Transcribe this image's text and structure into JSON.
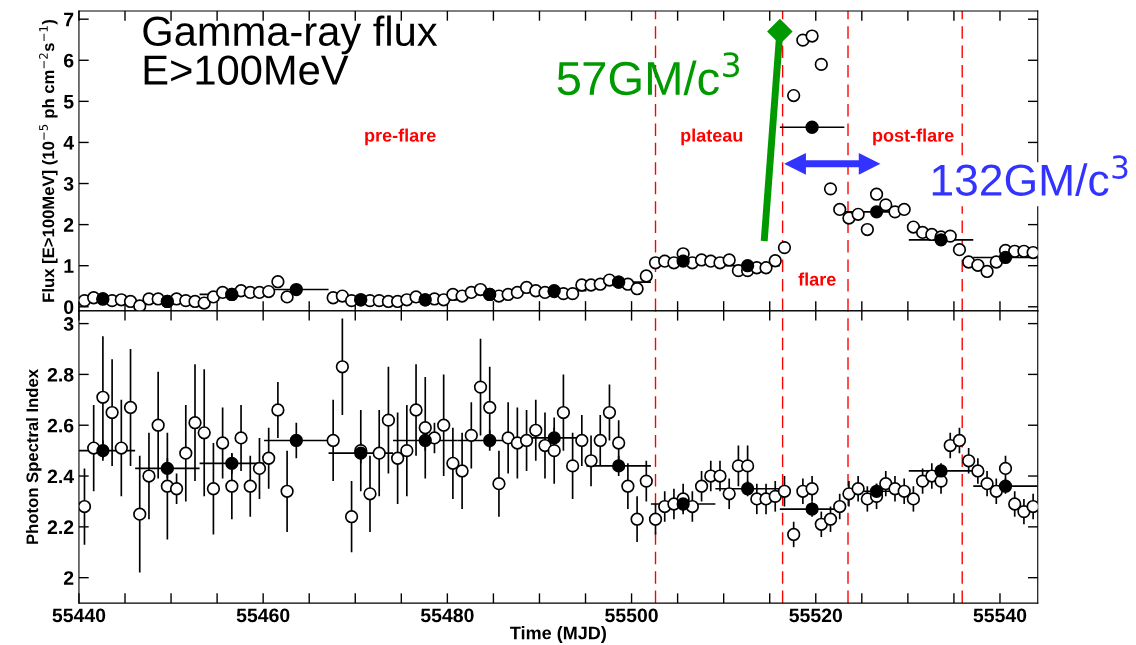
{
  "chart_data": [
    {
      "type": "scatter",
      "ylabel": "Flux [E>100MeV] (10$^{−5}$ ph cm$^{−2}$s$^{−1}$)",
      "marker": "circle",
      "tick_labels": "y",
      "xlim": [
        55440,
        55544.1
      ],
      "ylim": [
        -0.1,
        7.2
      ],
      "xticks": [
        55440,
        {
          "value": 55445,
          "label": null
        },
        {
          "value": 55450,
          "label": null
        },
        {
          "value": 55455,
          "label": null
        },
        55460,
        {
          "value": 55465,
          "label": null
        },
        {
          "value": 55470,
          "label": null
        },
        {
          "value": 55475,
          "label": null
        },
        55480,
        {
          "value": 55485,
          "label": null
        },
        {
          "value": 55490,
          "label": null
        },
        {
          "value": 55495,
          "label": null
        },
        55500,
        {
          "value": 55505,
          "label": null
        },
        {
          "value": 55510,
          "label": null
        },
        {
          "value": 55515,
          "label": null
        },
        55520,
        {
          "value": 55525,
          "label": null
        },
        {
          "value": 55530,
          "label": null
        },
        {
          "value": 55535,
          "label": null
        },
        55540
      ],
      "yticks": [
        0,
        1,
        2,
        3,
        4,
        5,
        6,
        7
      ],
      "ref_lines": [
        {
          "axis": "x",
          "value": 55502.6,
          "color": "#ff0000",
          "line_style": "dashed"
        },
        {
          "axis": "x",
          "value": 55516.4,
          "color": "#ff0000",
          "line_style": "dashed"
        },
        {
          "axis": "x",
          "value": 55523.5,
          "color": "#ff0000",
          "line_style": "dashed"
        },
        {
          "axis": "x",
          "value": 55535.9,
          "color": "#ff0000",
          "line_style": "dashed"
        }
      ],
      "annotations": [
        "Gamma-ray flux\nE>100MeV",
        "pre-flare",
        "plateau",
        "flare",
        "post-flare",
        "57GM/c$^{3}$",
        "132GM/c$^{3}$"
      ],
      "series": [
        {
          "color": "#000000",
          "x": [
            55440.6,
            55441.6,
            55442.6,
            55443.6,
            55444.6,
            55445.6,
            55446.6,
            55447.6,
            55448.6,
            55449.6,
            55450.6,
            55451.6,
            55452.6,
            55453.6,
            55454.6,
            55455.6,
            55456.6,
            55457.6,
            55458.6,
            55459.6,
            55460.6,
            55461.6,
            55462.6,
            55467.6,
            55468.6,
            55469.6,
            55470.6,
            55471.6,
            55472.6,
            55473.6,
            55474.6,
            55475.6,
            55476.6,
            55477.6,
            55478.6,
            55479.6,
            55480.6,
            55481.6,
            55482.6,
            55483.6,
            55484.6,
            55485.6,
            55486.6,
            55487.6,
            55488.6,
            55489.6,
            55490.6,
            55491.6,
            55492.6,
            55493.6,
            55494.6,
            55495.6,
            55496.6,
            55497.6,
            55498.6,
            55499.6,
            55500.6,
            55501.6,
            55502.6,
            55503.6,
            55504.6,
            55505.6,
            55506.6,
            55507.6,
            55508.6,
            55509.6,
            55510.6,
            55511.6,
            55512.6,
            55513.6,
            55514.6,
            55515.6,
            55516.6,
            55517.6,
            55518.6,
            55519.6,
            55520.6,
            55521.6,
            55522.6,
            55523.6,
            55524.6,
            55525.6,
            55526.6,
            55527.6,
            55528.6,
            55529.6,
            55530.6,
            55531.6,
            55532.6,
            55533.6,
            55534.6,
            55535.6,
            55536.6,
            55537.6,
            55538.6,
            55539.6,
            55540.6,
            55541.6,
            55542.6,
            55543.6
          ],
          "values": [
            0.15,
            0.22,
            0.19,
            0.15,
            0.17,
            0.13,
            0.02,
            0.19,
            0.19,
            0.13,
            0.19,
            0.15,
            0.13,
            0.09,
            0.24,
            0.35,
            0.3,
            0.39,
            0.35,
            0.35,
            0.37,
            0.61,
            0.24,
            0.22,
            0.26,
            0.15,
            0.17,
            0.15,
            0.15,
            0.13,
            0.13,
            0.17,
            0.24,
            0.17,
            0.19,
            0.17,
            0.3,
            0.26,
            0.35,
            0.42,
            0.3,
            0.26,
            0.3,
            0.35,
            0.47,
            0.39,
            0.35,
            0.37,
            0.32,
            0.32,
            0.53,
            0.53,
            0.55,
            0.65,
            0.6,
            0.55,
            0.44,
            0.75,
            1.07,
            1.11,
            1.07,
            1.29,
            1.07,
            1.14,
            1.11,
            1.07,
            1.14,
            0.88,
            0.88,
            0.95,
            0.95,
            1.12,
            1.44,
            5.14,
            6.49,
            6.59,
            5.9,
            2.87,
            2.37,
            2.16,
            2.25,
            1.88,
            2.74,
            2.48,
            2.31,
            2.37,
            1.94,
            1.81,
            1.76,
            1.7,
            1.72,
            1.39,
            1.09,
            1.01,
            0.86,
            1.09,
            1.37,
            1.35,
            1.35,
            1.32
          ]
        },
        {
          "color": "#000000",
          "x": [
            55442.6,
            55449.6,
            55456.6,
            55463.6,
            55470.6,
            55477.6,
            55484.6,
            55491.6,
            55498.6,
            55505.6,
            55512.6,
            55519.6,
            55526.6,
            55533.6,
            55540.6
          ],
          "values": [
            0.19,
            0.13,
            0.3,
            0.42,
            0.17,
            0.17,
            0.3,
            0.39,
            0.6,
            1.11,
            1.0,
            4.37,
            2.31,
            1.63,
            1.2
          ],
          "xerrors": [
            3.5,
            3.5,
            3.5,
            3.5,
            3.5,
            3.5,
            3.5,
            3.5,
            3.5,
            3.5,
            3.5,
            3.5,
            3.5,
            3.5,
            3.5
          ]
        },
        {
          "type": "line",
          "color": "#009900",
          "marker": "diamond",
          "line_style": "solid",
          "x": [
            55514.4,
            55516.1
          ],
          "values": [
            1.6,
            6.7
          ]
        },
        {
          "type": "line",
          "color": "#3333ff",
          "marker": "triangle",
          "line_style": "solid",
          "x": [
            55517.8,
            55525.8
          ],
          "values": [
            3.48,
            3.48
          ]
        }
      ]
    },
    {
      "type": "scatter",
      "xlabel": "Time (MJD)",
      "ylabel": "Photon Spectral Index",
      "marker": "circle",
      "xlim": [
        55440,
        55544.1
      ],
      "ylim": [
        1.9,
        3.05
      ],
      "xticks": [
        55440,
        {
          "value": 55445,
          "label": null
        },
        {
          "value": 55450,
          "label": null
        },
        {
          "value": 55455,
          "label": null
        },
        55460,
        {
          "value": 55465,
          "label": null
        },
        {
          "value": 55470,
          "label": null
        },
        {
          "value": 55475,
          "label": null
        },
        55480,
        {
          "value": 55485,
          "label": null
        },
        {
          "value": 55490,
          "label": null
        },
        {
          "value": 55495,
          "label": null
        },
        55500,
        {
          "value": 55505,
          "label": null
        },
        {
          "value": 55510,
          "label": null
        },
        {
          "value": 55515,
          "label": null
        },
        55520,
        {
          "value": 55525,
          "label": null
        },
        {
          "value": 55530,
          "label": null
        },
        {
          "value": 55535,
          "label": null
        },
        55540
      ],
      "yticks": [
        2,
        2.2,
        2.4,
        2.6,
        2.8,
        3
      ],
      "ref_lines": [
        {
          "axis": "x",
          "value": 55502.6,
          "color": "#ff0000",
          "line_style": "dashed"
        },
        {
          "axis": "x",
          "value": 55516.4,
          "color": "#ff0000",
          "line_style": "dashed"
        },
        {
          "axis": "x",
          "value": 55523.5,
          "color": "#ff0000",
          "line_style": "dashed"
        },
        {
          "axis": "x",
          "value": 55535.9,
          "color": "#ff0000",
          "line_style": "dashed"
        }
      ],
      "series": [
        {
          "color": "#000000",
          "x": [
            55440.6,
            55441.6,
            55442.6,
            55443.6,
            55444.6,
            55445.6,
            55446.6,
            55447.6,
            55448.6,
            55449.6,
            55450.6,
            55451.6,
            55452.6,
            55453.6,
            55454.6,
            55455.6,
            55456.6,
            55457.6,
            55458.6,
            55459.6,
            55460.6,
            55461.6,
            55462.6,
            55467.6,
            55468.6,
            55469.6,
            55470.6,
            55471.6,
            55472.6,
            55473.6,
            55474.6,
            55475.6,
            55476.6,
            55477.6,
            55478.6,
            55479.6,
            55480.6,
            55481.6,
            55482.6,
            55483.6,
            55484.6,
            55485.6,
            55486.6,
            55487.6,
            55488.6,
            55489.6,
            55490.6,
            55491.6,
            55492.6,
            55493.6,
            55494.6,
            55495.6,
            55496.6,
            55497.6,
            55498.6,
            55499.6,
            55500.6,
            55501.6,
            55502.6,
            55503.6,
            55504.6,
            55505.6,
            55506.6,
            55507.6,
            55508.6,
            55509.6,
            55510.6,
            55511.6,
            55512.6,
            55513.6,
            55514.6,
            55515.6,
            55516.6,
            55517.6,
            55518.6,
            55519.6,
            55520.6,
            55521.6,
            55522.6,
            55523.6,
            55524.6,
            55525.6,
            55526.6,
            55527.6,
            55528.6,
            55529.6,
            55530.6,
            55531.6,
            55532.6,
            55533.6,
            55534.6,
            55535.6,
            55536.6,
            55537.6,
            55538.6,
            55539.6,
            55540.6,
            55541.6,
            55542.6,
            55543.6
          ],
          "values": [
            2.28,
            2.51,
            2.71,
            2.65,
            2.51,
            2.67,
            2.25,
            2.4,
            2.6,
            2.36,
            2.35,
            2.49,
            2.61,
            2.57,
            2.35,
            2.53,
            2.36,
            2.55,
            2.36,
            2.43,
            2.47,
            2.66,
            2.34,
            2.54,
            2.83,
            2.24,
            2.5,
            2.33,
            2.49,
            2.62,
            2.47,
            2.5,
            2.66,
            2.59,
            2.55,
            2.6,
            2.45,
            2.42,
            2.56,
            2.75,
            2.67,
            2.37,
            2.55,
            2.53,
            2.54,
            2.58,
            2.52,
            2.5,
            2.65,
            2.44,
            2.54,
            2.46,
            2.54,
            2.65,
            2.53,
            2.36,
            2.23,
            2.38,
            2.23,
            2.28,
            2.29,
            2.31,
            2.28,
            2.36,
            2.4,
            2.4,
            2.33,
            2.44,
            2.44,
            2.31,
            2.31,
            2.32,
            2.34,
            2.17,
            2.34,
            2.35,
            2.21,
            2.23,
            2.28,
            2.33,
            2.35,
            2.31,
            2.32,
            2.37,
            2.35,
            2.34,
            2.31,
            2.38,
            2.4,
            2.38,
            2.52,
            2.54,
            2.46,
            2.42,
            2.37,
            2.34,
            2.43,
            2.29,
            2.26,
            2.28
          ],
          "errors": [
            0.15,
            0.17,
            0.24,
            0.21,
            0.19,
            0.23,
            0.23,
            0.17,
            0.21,
            0.21,
            0.06,
            0.19,
            0.23,
            0.25,
            0.18,
            0.14,
            0.13,
            0.13,
            0.12,
            0.12,
            0.12,
            0.11,
            0.16,
            0.16,
            0.19,
            0.14,
            0.16,
            0.15,
            0.17,
            0.21,
            0.18,
            0.18,
            0.18,
            0.2,
            0.06,
            0.2,
            0.14,
            0.15,
            0.13,
            0.19,
            0.16,
            0.13,
            0.14,
            0.14,
            0.12,
            0.12,
            0.13,
            0.13,
            0.15,
            0.13,
            0.1,
            0.1,
            0.1,
            0.11,
            0.09,
            0.09,
            0.09,
            0.08,
            0.06,
            0.06,
            0.06,
            0.06,
            0.06,
            0.06,
            0.06,
            0.06,
            0.06,
            0.08,
            0.08,
            0.06,
            0.06,
            0.06,
            0.06,
            0.05,
            0.05,
            0.05,
            0.05,
            0.05,
            0.05,
            0.05,
            0.05,
            0.05,
            0.05,
            0.05,
            0.05,
            0.05,
            0.05,
            0.05,
            0.05,
            0.05,
            0.05,
            0.05,
            0.05,
            0.05,
            0.05,
            0.05,
            0.05,
            0.05,
            0.05,
            0.05
          ]
        },
        {
          "color": "#000000",
          "x": [
            55442.6,
            55449.6,
            55456.6,
            55463.6,
            55470.6,
            55477.6,
            55484.6,
            55491.6,
            55498.6,
            55505.6,
            55512.6,
            55519.6,
            55526.6,
            55533.6,
            55540.6
          ],
          "values": [
            2.5,
            2.43,
            2.45,
            2.54,
            2.49,
            2.54,
            2.54,
            2.55,
            2.44,
            2.29,
            2.35,
            2.27,
            2.34,
            2.42,
            2.36
          ],
          "errors": [
            0.04,
            0.04,
            0.04,
            0.07,
            0.04,
            0.04,
            0.04,
            0.04,
            0.04,
            0.03,
            0.03,
            0.03,
            0.03,
            0.03,
            0.03
          ],
          "xerrors": [
            3.5,
            3.5,
            3.5,
            3.5,
            3.5,
            3.5,
            3.5,
            3.5,
            3.5,
            3.5,
            3.5,
            3.5,
            3.5,
            3.5,
            3.5
          ]
        }
      ]
    }
  ]
}
